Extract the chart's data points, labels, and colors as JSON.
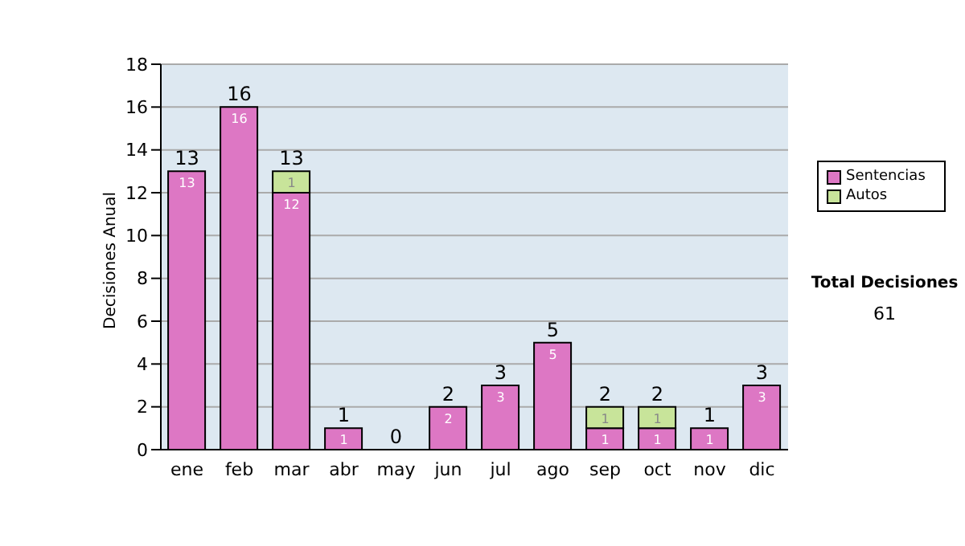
{
  "chart_data": {
    "type": "bar",
    "stacked": true,
    "ylabel": "Decisiones Anual",
    "categories": [
      "ene",
      "feb",
      "mar",
      "abr",
      "may",
      "jun",
      "jul",
      "ago",
      "sep",
      "oct",
      "nov",
      "dic"
    ],
    "series": [
      {
        "name": "Sentencias",
        "color": "#dd77c4",
        "values": [
          13,
          16,
          12,
          1,
          0,
          2,
          3,
          5,
          1,
          1,
          1,
          3
        ],
        "value_labels": [
          "13",
          "16",
          "12",
          "1",
          null,
          "2",
          "3",
          "5",
          "1",
          "1",
          "1",
          "3"
        ]
      },
      {
        "name": "Autos",
        "color": "#c8e49a",
        "values": [
          0,
          0,
          1,
          0,
          0,
          0,
          0,
          0,
          1,
          1,
          0,
          0
        ],
        "value_labels": [
          null,
          null,
          "1",
          null,
          null,
          null,
          null,
          null,
          "1",
          "1",
          null,
          null
        ]
      }
    ],
    "totals": [
      "13",
      "16",
      "13",
      "1",
      "0",
      "2",
      "3",
      "5",
      "2",
      "2",
      "1",
      "3"
    ],
    "ylim": [
      0,
      18
    ],
    "yticks": [
      0,
      2,
      4,
      6,
      8,
      10,
      12,
      14,
      16,
      18
    ],
    "grid": "y",
    "legend": "right",
    "annotations": [
      "Total Decisiones",
      "61"
    ]
  }
}
